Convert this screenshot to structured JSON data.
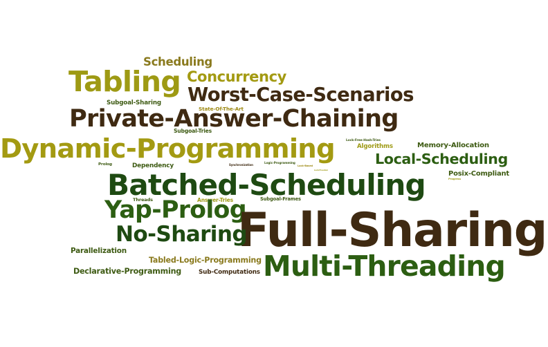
{
  "words": [
    {
      "text": "Scheduling",
      "color": "#8a7a1e"
    },
    {
      "text": "Concurrency",
      "color": "#a39a12"
    },
    {
      "text": "Tabling",
      "color": "#9e9a14"
    },
    {
      "text": "Worst-Case-Scenarios",
      "color": "#3f2a12"
    },
    {
      "text": "Subgoal-Sharing",
      "color": "#3d5a12"
    },
    {
      "text": "State-Of-The-Art",
      "color": "#9e8a14"
    },
    {
      "text": "Private-Answer-Chaining",
      "color": "#3f2a12"
    },
    {
      "text": "Subgoal-Tries",
      "color": "#3d5a12"
    },
    {
      "text": "Dynamic-Programming",
      "color": "#a39a12"
    },
    {
      "text": "Lock-Free-Hash-Tries",
      "color": "#3d5a12"
    },
    {
      "text": "Algorithms",
      "color": "#9e9a14"
    },
    {
      "text": "Memory-Allocation",
      "color": "#3d5a12"
    },
    {
      "text": "Local-Scheduling",
      "color": "#2c5e12"
    },
    {
      "text": "Prolog",
      "color": "#3d5a12"
    },
    {
      "text": "Dependency",
      "color": "#3d5a12"
    },
    {
      "text": "Synchronization",
      "color": "#3f2a12"
    },
    {
      "text": "Logic-Programming",
      "color": "#3d5a12"
    },
    {
      "text": "Lock-Based",
      "color": "#9e8a14"
    },
    {
      "text": "Lock-Freedom",
      "color": "#9e9a14"
    },
    {
      "text": "Posix-Compliant",
      "color": "#3d5a12"
    },
    {
      "text": "Progress",
      "color": "#9e9a14"
    },
    {
      "text": "Batched-Scheduling",
      "color": "#1e4a12"
    },
    {
      "text": "Threads",
      "color": "#3d5a12"
    },
    {
      "text": "Answer-Tries",
      "color": "#9e9a14"
    },
    {
      "text": "Subgoal-Frames",
      "color": "#3d5a12"
    },
    {
      "text": "Yap-Prolog",
      "color": "#2c5e12"
    },
    {
      "text": "Full-Sharing",
      "color": "#3f2a12"
    },
    {
      "text": "No-Sharing",
      "color": "#1e4a12"
    },
    {
      "text": "Parallelization",
      "color": "#3d5a12"
    },
    {
      "text": "Tabled-Logic-Programming",
      "color": "#8a7a1e"
    },
    {
      "text": "Multi-Threading",
      "color": "#2c5e12"
    },
    {
      "text": "Declarative-Programming",
      "color": "#3d5a12"
    },
    {
      "text": "Sub-Computations",
      "color": "#3f2a12"
    }
  ]
}
